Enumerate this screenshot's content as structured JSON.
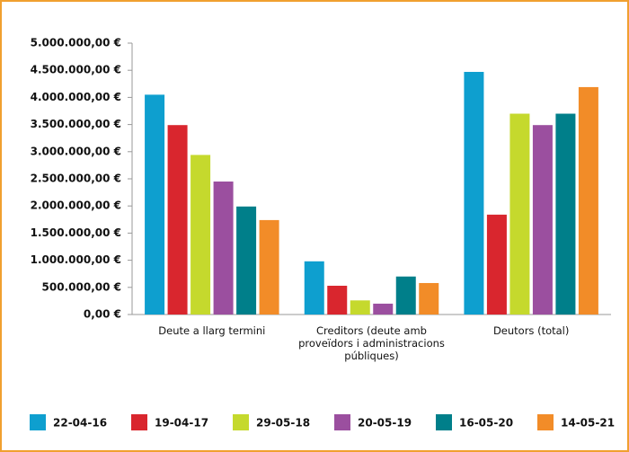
{
  "chart_data": {
    "type": "bar",
    "categories": [
      "Deute a llarg termini",
      "Creditors (deute amb proveïdors i administracions públiques)",
      "Deutors (total)"
    ],
    "series": [
      {
        "name": "22-04-16",
        "color": "#0e9fcf",
        "values": [
          4050000,
          980000,
          4470000
        ]
      },
      {
        "name": "19-04-17",
        "color": "#d9262e",
        "values": [
          3490000,
          530000,
          1840000
        ]
      },
      {
        "name": "29-05-18",
        "color": "#c5d92d",
        "values": [
          2940000,
          260000,
          3700000
        ]
      },
      {
        "name": "20-05-19",
        "color": "#9b4f9f",
        "values": [
          2450000,
          200000,
          3490000
        ]
      },
      {
        "name": "16-05-20",
        "color": "#007f8a",
        "values": [
          1990000,
          700000,
          3700000
        ]
      },
      {
        "name": "14-05-21",
        "color": "#f28c28",
        "values": [
          1740000,
          580000,
          4190000
        ]
      }
    ],
    "ylim": [
      0,
      5000000
    ],
    "yticks": [
      {
        "value": 0,
        "label": "0,00 €"
      },
      {
        "value": 500000,
        "label": "500.000,00 €"
      },
      {
        "value": 1000000,
        "label": "1.000.000,00 €"
      },
      {
        "value": 1500000,
        "label": "1.500.000,00 €"
      },
      {
        "value": 2000000,
        "label": "2.000.000,00 €"
      },
      {
        "value": 2500000,
        "label": "2.500.000,00 €"
      },
      {
        "value": 3000000,
        "label": "3.000.000,00 €"
      },
      {
        "value": 3500000,
        "label": "3.500.000,00 €"
      },
      {
        "value": 4000000,
        "label": "4.000.000,00 €"
      },
      {
        "value": 4500000,
        "label": "4.500.000,00 €"
      },
      {
        "value": 5000000,
        "label": "5.000.000,00 €"
      }
    ],
    "legend": "bottom"
  }
}
